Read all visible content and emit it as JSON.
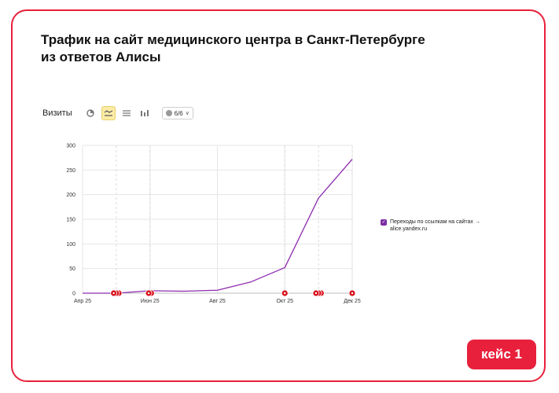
{
  "title_line1": "Трафик на сайт медицинского центра в Санкт-Петербурге",
  "title_line2": "из ответов Алисы",
  "toolbar": {
    "metric_label": "Визиты",
    "series_select_label": "6/6",
    "icons": [
      "pie-chart-icon",
      "line-chart-icon",
      "area-chart-icon",
      "bar-chart-icon"
    ]
  },
  "legend": {
    "item_label": "Переходы по ссылкам на сайтах → alice.yandex.ru",
    "checked": true
  },
  "badge_label": "кейс 1",
  "colors": {
    "accent": "#e8203c",
    "series": "#8e2bb0",
    "marker": "#d8101c"
  },
  "chart_data": {
    "type": "line",
    "title": "",
    "xlabel": "",
    "ylabel": "",
    "ylim": [
      0,
      300
    ],
    "yticks": [
      0,
      50,
      100,
      150,
      200,
      250,
      300
    ],
    "x_tick_labels": [
      "Апр 25",
      "Июн 25",
      "Авг 25",
      "Окт 25",
      "Дек 25"
    ],
    "grid": true,
    "legend_position": "right",
    "series": [
      {
        "name": "Переходы по ссылкам на сайтах → alice.yandex.ru",
        "x": [
          "2025-04",
          "2025-05",
          "2025-06",
          "2025-07",
          "2025-08",
          "2025-09",
          "2025-10",
          "2025-11",
          "2025-12"
        ],
        "values": [
          0,
          0,
          5,
          4,
          6,
          23,
          52,
          193,
          272
        ]
      }
    ],
    "annotation_markers": [
      {
        "x": "2025-05",
        "count": 3
      },
      {
        "x": "2025-06",
        "count": 2
      },
      {
        "x": "2025-10",
        "count": 1
      },
      {
        "x": "2025-11",
        "count": 3
      },
      {
        "x": "2025-12",
        "count": 1
      }
    ]
  }
}
